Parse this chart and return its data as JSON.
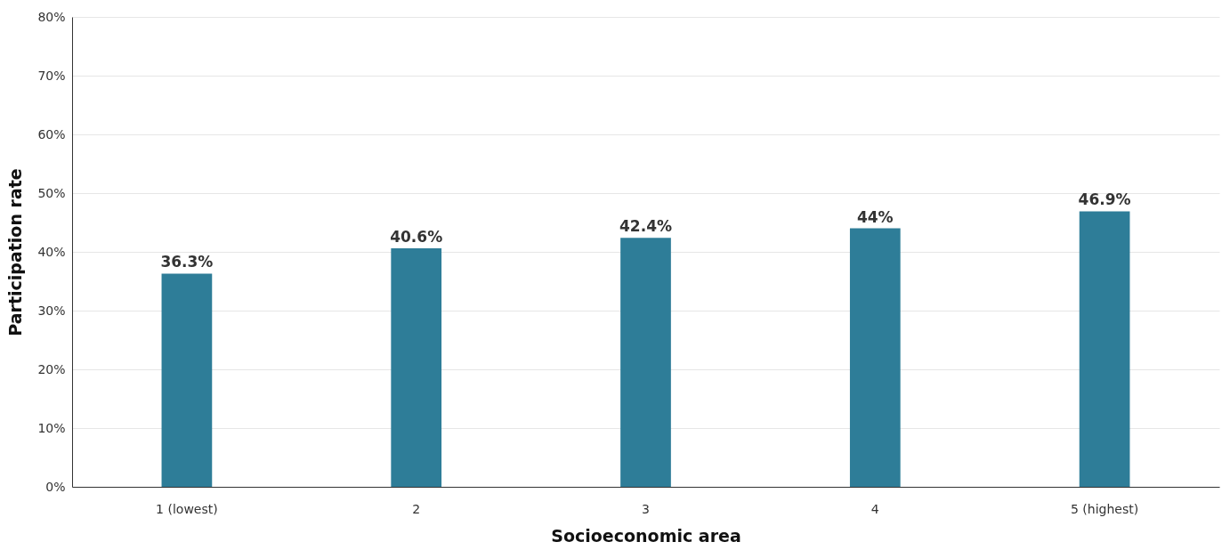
{
  "chart_data": {
    "type": "bar",
    "xlabel": "Socioeconomic area",
    "ylabel": "Participation rate",
    "categories": [
      "1 (lowest)",
      "2",
      "3",
      "4",
      "5 (highest)"
    ],
    "values": [
      36.3,
      40.6,
      42.4,
      44,
      46.9
    ],
    "value_labels": [
      "36.3%",
      "40.6%",
      "42.4%",
      "44%",
      "46.9%"
    ],
    "color": "#2e7d98",
    "ylim": [
      0,
      80
    ],
    "yticks": [
      {
        "value": 0,
        "label": "0%"
      },
      {
        "value": 10,
        "label": "10%"
      },
      {
        "value": 20,
        "label": "20%"
      },
      {
        "value": 30,
        "label": "30%"
      },
      {
        "value": 40,
        "label": "40%"
      },
      {
        "value": 50,
        "label": "50%"
      },
      {
        "value": 60,
        "label": "60%"
      },
      {
        "value": 70,
        "label": "70%"
      },
      {
        "value": 80,
        "label": "80%"
      }
    ],
    "grid": "y"
  }
}
